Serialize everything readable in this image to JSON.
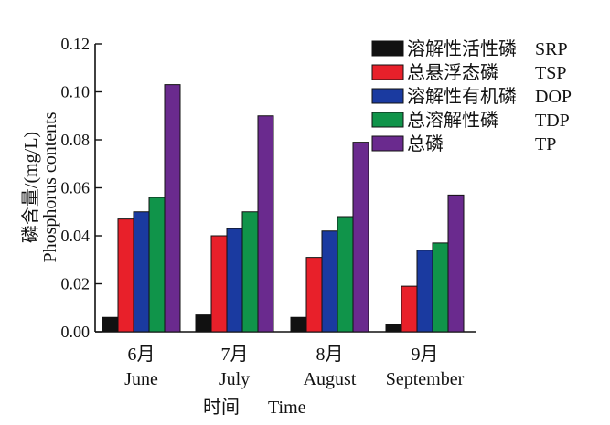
{
  "chart_data": {
    "type": "bar",
    "ylabel_cn": "磷含量/(mg/L)",
    "ylabel_en": "Phosphorus contents",
    "xlabel_cn": "时间",
    "xlabel_en": "Time",
    "ylim": [
      0,
      0.12
    ],
    "yticks": [
      "0.00",
      "0.02",
      "0.04",
      "0.06",
      "0.08",
      "0.10",
      "0.12"
    ],
    "categories": [
      {
        "cn": "6月",
        "en": "June"
      },
      {
        "cn": "7月",
        "en": "July"
      },
      {
        "cn": "8月",
        "en": "August"
      },
      {
        "cn": "9月",
        "en": "September"
      }
    ],
    "legend_position": "top-right",
    "series": [
      {
        "name_cn": "溶解性活性磷",
        "name_en": "SRP",
        "color": "#111111",
        "values": [
          0.006,
          0.007,
          0.006,
          0.003
        ]
      },
      {
        "name_cn": "总悬浮态磷",
        "name_en": "TSP",
        "color": "#e8202a",
        "values": [
          0.047,
          0.04,
          0.031,
          0.019
        ]
      },
      {
        "name_cn": "溶解性有机磷",
        "name_en": "DOP",
        "color": "#1a3aa0",
        "values": [
          0.05,
          0.043,
          0.042,
          0.034
        ]
      },
      {
        "name_cn": "总溶解性磷",
        "name_en": "TDP",
        "color": "#10944a",
        "values": [
          0.056,
          0.05,
          0.048,
          0.037
        ]
      },
      {
        "name_cn": "总磷",
        "name_en": "TP",
        "color": "#6a2a8e",
        "values": [
          0.103,
          0.09,
          0.079,
          0.057
        ]
      }
    ]
  }
}
